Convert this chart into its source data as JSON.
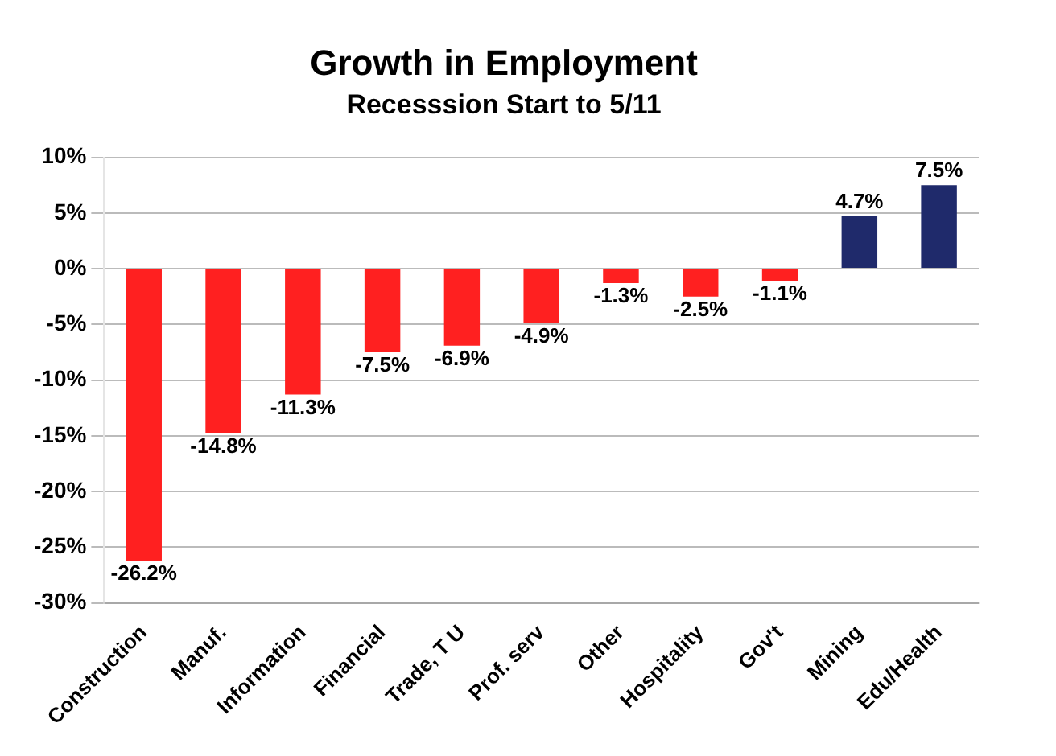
{
  "chart_data": {
    "type": "bar",
    "title": "Growth in Employment",
    "subtitle": "Recesssion Start to 5/11",
    "categories": [
      "Construction",
      "Manuf.",
      "Information",
      "Financial",
      "Trade, T U",
      "Prof. serv",
      "Other",
      "Hospitality",
      "Gov't",
      "Mining",
      "Edu/Health"
    ],
    "values": [
      -26.2,
      -14.8,
      -11.3,
      -7.5,
      -6.9,
      -4.9,
      -1.3,
      -2.5,
      -1.1,
      4.7,
      7.5
    ],
    "colors": [
      "#ff2020",
      "#ff2020",
      "#ff2020",
      "#ff2020",
      "#ff2020",
      "#ff2020",
      "#ff2020",
      "#ff2020",
      "#ff2020",
      "#1f2a6b",
      "#1f2a6b"
    ],
    "value_labels": [
      "-26.2%",
      "-14.8%",
      "-11.3%",
      "-7.5%",
      "-6.9%",
      "-4.9%",
      "-1.3%",
      "-2.5%",
      "-1.1%",
      "4.7%",
      "7.5%"
    ],
    "ylim": [
      -30,
      10
    ],
    "yticks": [
      {
        "value": -30,
        "label": "-30%"
      },
      {
        "value": -25,
        "label": "-25%"
      },
      {
        "value": -20,
        "label": "-20%"
      },
      {
        "value": -15,
        "label": "-15%"
      },
      {
        "value": -10,
        "label": "-10%"
      },
      {
        "value": -5,
        "label": "-5%"
      },
      {
        "value": 0,
        "label": "0%"
      },
      {
        "value": 5,
        "label": "5%"
      },
      {
        "value": 10,
        "label": "10%"
      }
    ],
    "grid": "y"
  }
}
